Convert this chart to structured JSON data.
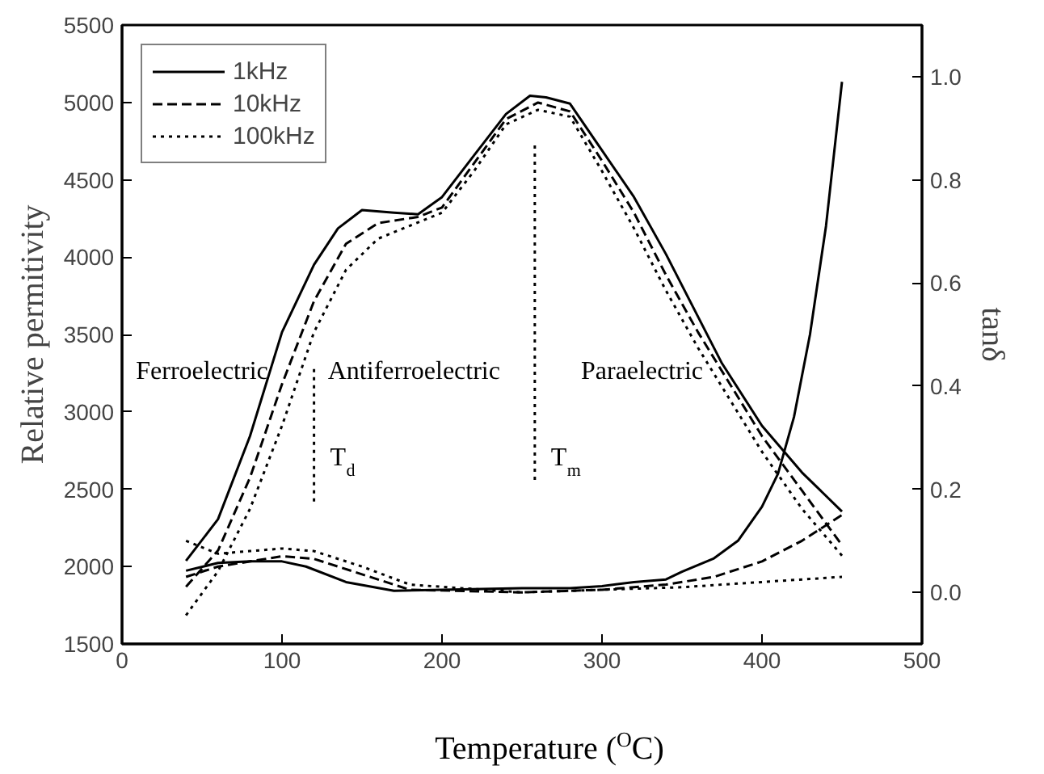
{
  "chart_data": {
    "type": "line",
    "xlabel": "Temperature ($^{O}$C)",
    "ylabel": "Relative permitivity",
    "y2label": "tanδ",
    "xlim": [
      0,
      500
    ],
    "xticks": [
      0,
      100,
      200,
      300,
      400,
      500
    ],
    "ylim": [
      1500,
      5500
    ],
    "yticks": [
      1500,
      2000,
      2500,
      3000,
      3500,
      4000,
      4500,
      5000,
      5500
    ],
    "y2lim": [
      -0.1,
      1.1
    ],
    "y2ticks": [
      {
        "value": 0,
        "label": "0.0"
      },
      0.2,
      0.4,
      0.6,
      0.8,
      {
        "value": 1,
        "label": "1.0"
      }
    ],
    "legend": "top left",
    "grid": false,
    "series": [
      {
        "name": "1kHz",
        "color": "#000000",
        "line_style": "solid",
        "x": [
          40,
          60,
          80,
          100,
          120,
          135,
          150,
          170,
          185,
          200,
          220,
          240,
          255,
          265,
          280,
          300,
          320,
          340,
          355,
          375,
          400,
          425,
          450
        ],
        "values": [
          2037,
          2306,
          2843,
          3515,
          3951,
          4186,
          4304,
          4287,
          4277,
          4388,
          4657,
          4925,
          5043,
          5033,
          4992,
          4690,
          4388,
          4019,
          3716,
          3313,
          2910,
          2608,
          2356
        ]
      },
      {
        "name": "10kHz",
        "color": "#000000",
        "line_style": "dashed",
        "x": [
          40,
          60,
          80,
          100,
          120,
          140,
          160,
          185,
          200,
          220,
          240,
          260,
          280,
          300,
          320,
          340,
          360,
          380,
          400,
          425,
          450
        ],
        "values": [
          1869,
          2104,
          2575,
          3179,
          3716,
          4086,
          4220,
          4260,
          4321,
          4606,
          4892,
          4999,
          4942,
          4623,
          4287,
          3884,
          3515,
          3179,
          2843,
          2491,
          2138
        ]
      },
      {
        "name": "100kHz",
        "color": "#000000",
        "line_style": "dotted",
        "x": [
          40,
          60,
          80,
          100,
          120,
          140,
          160,
          180,
          200,
          220,
          240,
          260,
          280,
          300,
          320,
          340,
          360,
          380,
          400,
          425,
          450
        ],
        "values": [
          1685,
          1970,
          2373,
          2910,
          3515,
          3918,
          4119,
          4203,
          4287,
          4556,
          4858,
          4952,
          4908,
          4556,
          4186,
          3783,
          3414,
          3078,
          2742,
          2373,
          2071
        ]
      },
      {
        "color": "#000000",
        "line_style": "solid",
        "axis": "y2",
        "x": [
          40,
          60,
          80,
          100,
          115,
          140,
          170,
          200,
          250,
          280,
          300,
          320,
          340,
          350,
          370,
          385,
          400,
          410,
          420,
          430,
          440,
          450
        ],
        "values": [
          0.042,
          0.057,
          0.06,
          0.06,
          0.05,
          0.02,
          0.003,
          0.005,
          0.008,
          0.008,
          0.012,
          0.02,
          0.025,
          0.04,
          0.066,
          0.1,
          0.166,
          0.23,
          0.34,
          0.5,
          0.71,
          0.99
        ]
      },
      {
        "color": "#000000",
        "line_style": "dashed",
        "axis": "y2",
        "x": [
          40,
          60,
          100,
          120,
          150,
          180,
          250,
          300,
          340,
          370,
          400,
          425,
          450
        ],
        "values": [
          0.03,
          0.05,
          0.07,
          0.065,
          0.035,
          0.005,
          0.0,
          0.005,
          0.015,
          0.03,
          0.06,
          0.1,
          0.15
        ]
      },
      {
        "color": "#000000",
        "line_style": "dotted",
        "axis": "y2",
        "x": [
          40,
          60,
          80,
          100,
          120,
          150,
          180,
          250,
          300,
          350,
          400,
          450
        ],
        "values": [
          0.1,
          0.075,
          0.08,
          0.085,
          0.08,
          0.05,
          0.015,
          0.0,
          0.005,
          0.01,
          0.02,
          0.03
        ]
      },
      {
        "color": "#000000",
        "line_style": "dotted",
        "x": [
          120,
          120
        ],
        "values": [
          2420,
          3300
        ]
      },
      {
        "color": "#000000",
        "line_style": "dotted",
        "x": [
          258,
          258
        ],
        "values": [
          2560,
          4750
        ]
      }
    ],
    "annotations": [
      "Ferroelectric",
      "Antiferroelectric",
      "Paraelectric",
      {
        "text": "T$_{d}$",
        "x": 120,
        "y": 2700
      },
      {
        "text": "T$_{m}$",
        "x": 258,
        "y": 2700
      }
    ]
  }
}
